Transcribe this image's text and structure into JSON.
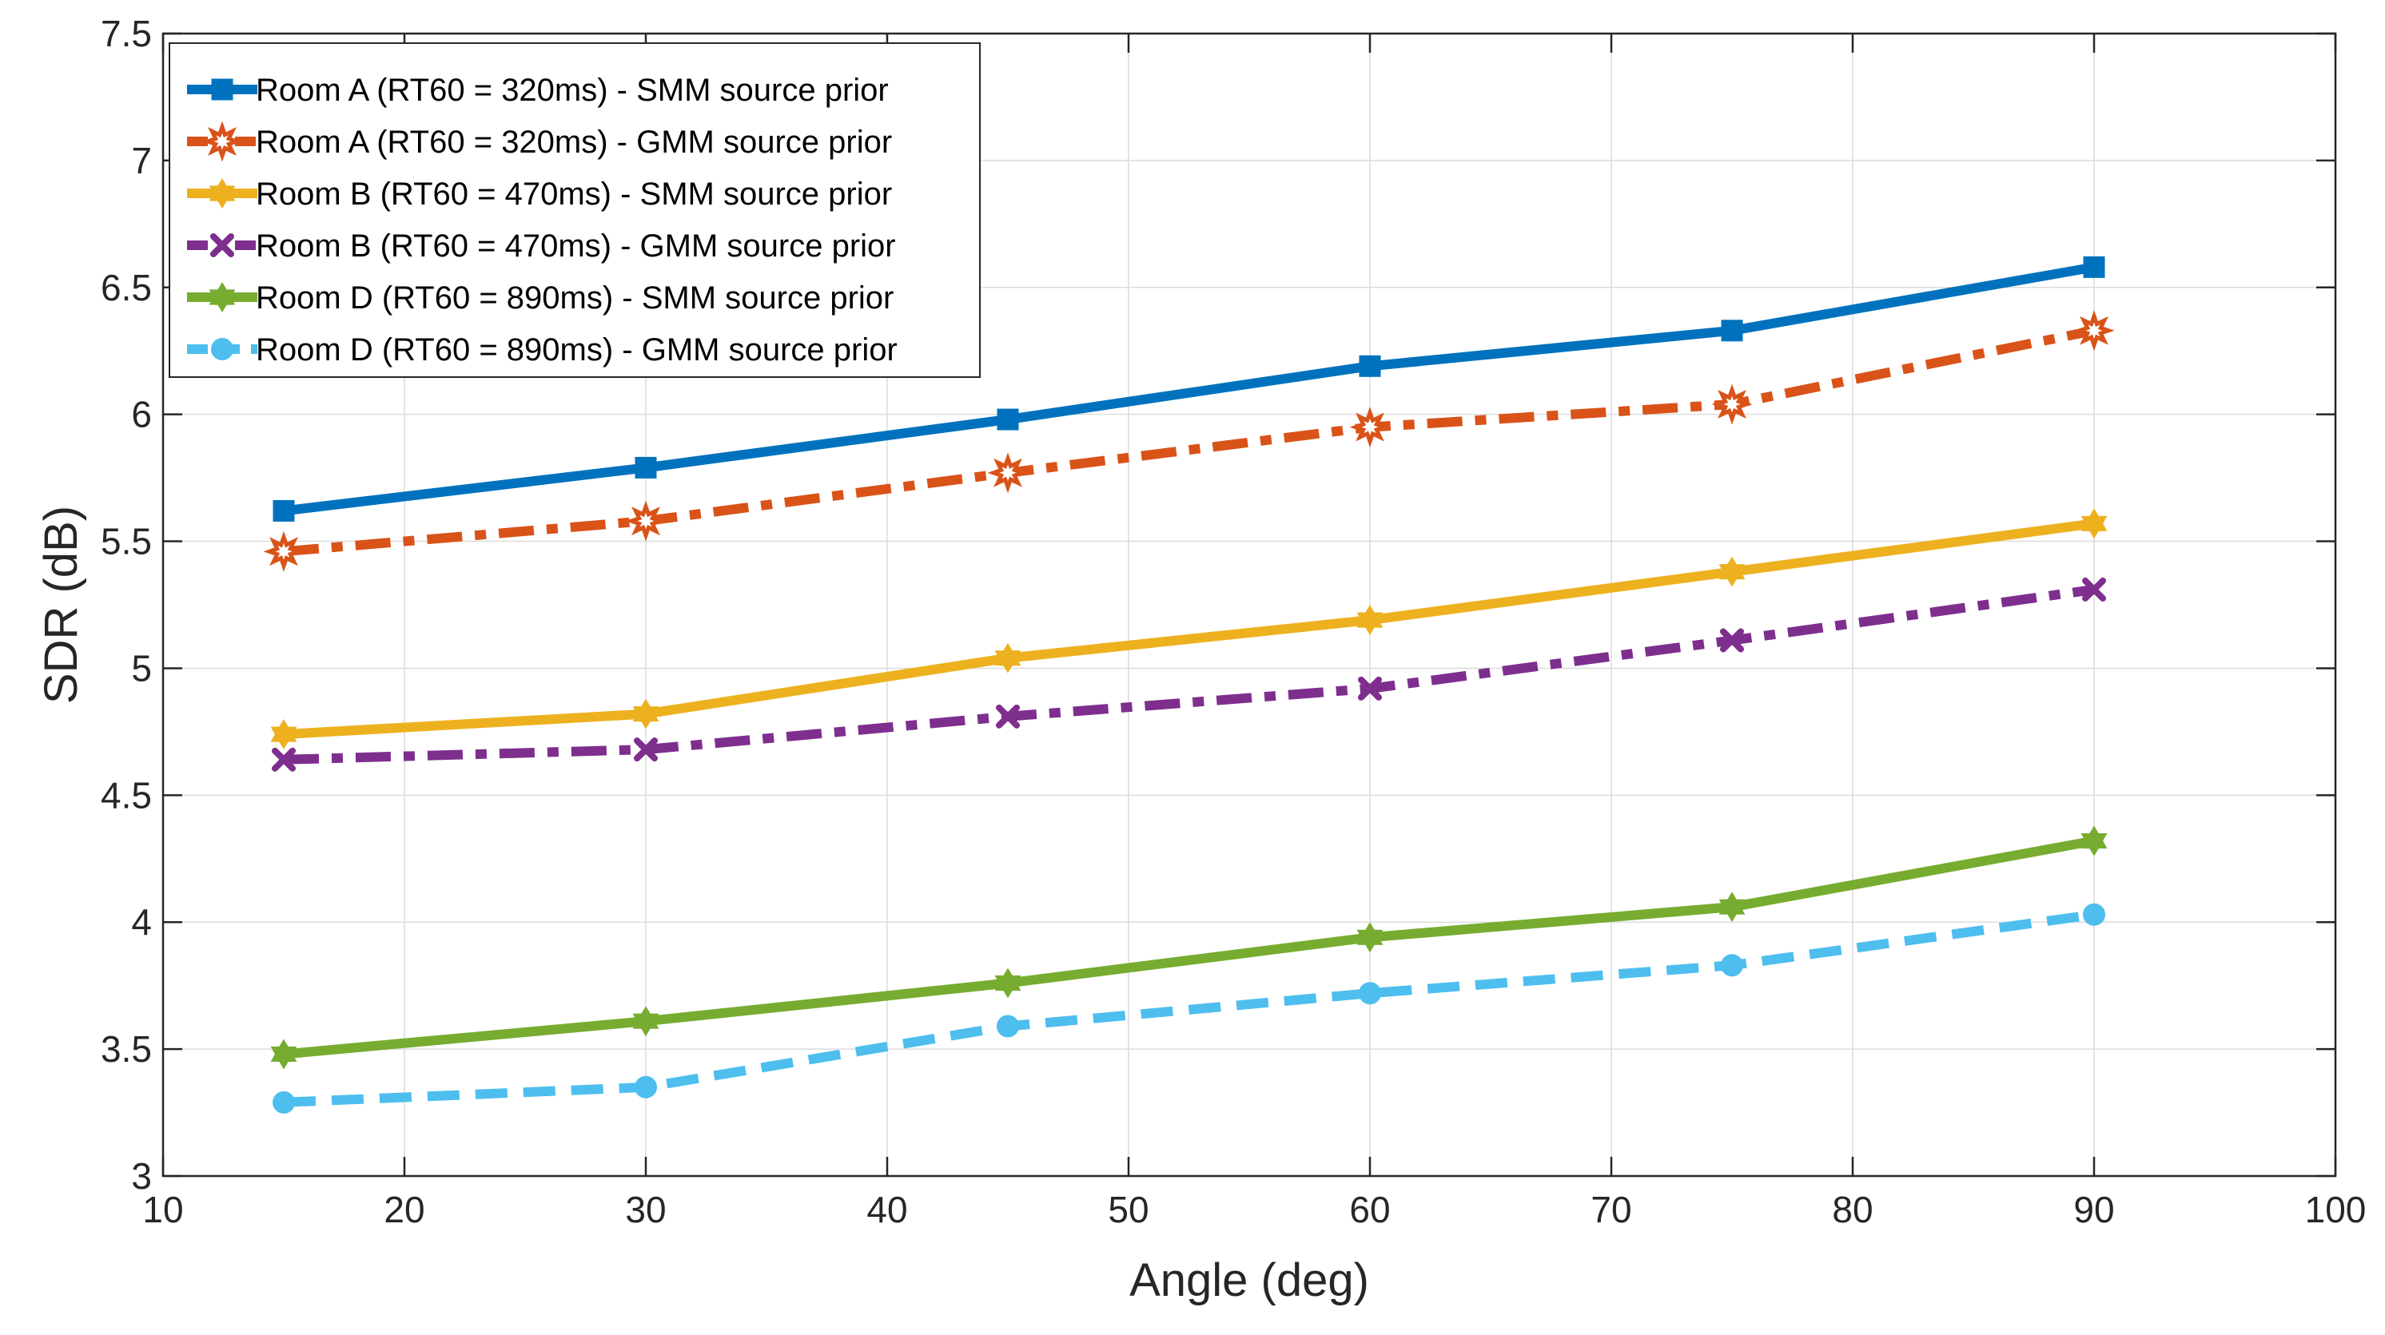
{
  "chart_data": {
    "type": "line",
    "title": "",
    "xlabel": "Angle (deg)",
    "ylabel": "SDR (dB)",
    "xlim": [
      10,
      100
    ],
    "ylim": [
      3,
      7.5
    ],
    "xticks": [
      10,
      20,
      30,
      40,
      50,
      60,
      70,
      80,
      90,
      100
    ],
    "yticks": [
      3,
      3.5,
      4,
      4.5,
      5,
      5.5,
      6,
      6.5,
      7,
      7.5
    ],
    "xtick_labels": [
      "10",
      "20",
      "30",
      "40",
      "50",
      "60",
      "70",
      "80",
      "90",
      "100"
    ],
    "ytick_labels": [
      "3",
      "3.5",
      "4",
      "4.5",
      "5",
      "5.5",
      "6",
      "6.5",
      "7",
      "7.5"
    ],
    "grid": true,
    "legend_position": "top-left",
    "x": [
      15,
      30,
      45,
      60,
      75,
      90
    ],
    "series": [
      {
        "name": "Room A (RT60 = 320ms) -  SMM source prior",
        "values": [
          5.62,
          5.79,
          5.98,
          6.19,
          6.33,
          6.58
        ],
        "color": "#0072BD",
        "dash": "solid",
        "marker": "square"
      },
      {
        "name": "Room A (RT60 = 320ms) -  GMM source prior",
        "values": [
          5.46,
          5.58,
          5.77,
          5.95,
          6.04,
          6.33
        ],
        "color": "#D95319",
        "dash": "dashdot",
        "marker": "star"
      },
      {
        "name": "Room B (RT60 = 470ms) -  SMM source prior",
        "values": [
          4.74,
          4.82,
          5.04,
          5.19,
          5.38,
          5.57
        ],
        "color": "#EDB120",
        "dash": "solid",
        "marker": "hexagram"
      },
      {
        "name": "Room B (RT60 = 470ms) -  GMM source prior",
        "values": [
          4.64,
          4.68,
          4.81,
          4.92,
          5.11,
          5.31
        ],
        "color": "#7E2F8E",
        "dash": "dashdot",
        "marker": "x"
      },
      {
        "name": "Room D (RT60 = 890ms) -  SMM source prior",
        "values": [
          3.48,
          3.61,
          3.76,
          3.94,
          4.06,
          4.32
        ],
        "color": "#77AC30",
        "dash": "solid",
        "marker": "hexagram"
      },
      {
        "name": "Room D (RT60 = 890ms) -  GMM source prior",
        "values": [
          3.29,
          3.35,
          3.59,
          3.72,
          3.83,
          4.03
        ],
        "color": "#4DBEEE",
        "dash": "dashed",
        "marker": "circle"
      }
    ]
  }
}
